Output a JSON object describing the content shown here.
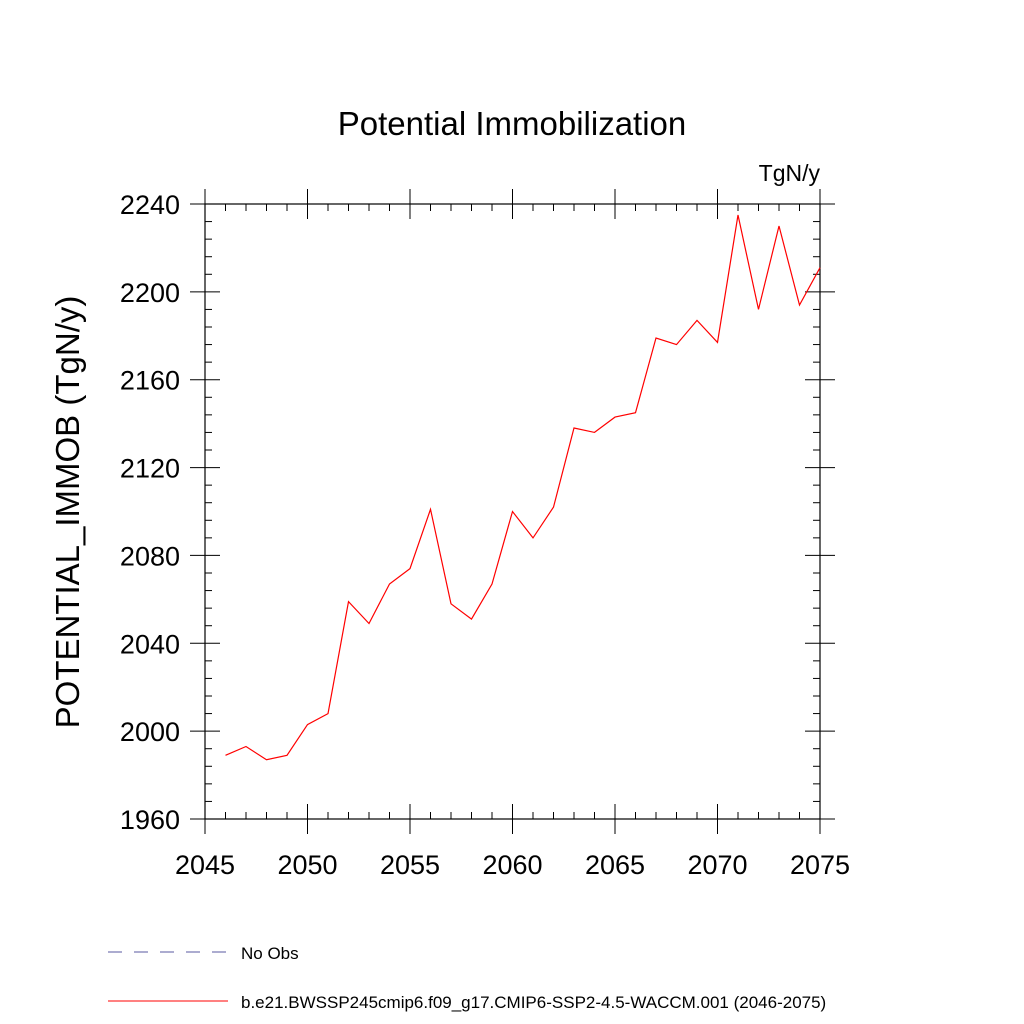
{
  "chart_data": {
    "type": "line",
    "title": "Potential Immobilization",
    "units_label": "TgN/y",
    "ylabel": "POTENTIAL_IMMOB  (TgN/y)",
    "xlabel": "",
    "xlim": [
      2045,
      2075
    ],
    "ylim": [
      1960,
      2240
    ],
    "x_ticks": [
      2045,
      2050,
      2055,
      2060,
      2065,
      2070,
      2075
    ],
    "y_ticks": [
      1960,
      2000,
      2040,
      2080,
      2120,
      2160,
      2200,
      2240
    ],
    "x_minor_step": 1,
    "y_minor_step": 8,
    "series": [
      {
        "name": "b.e21.BWSSP245cmip6.f09_g17.CMIP6-SSP2-4.5-WACCM.001 (2046-2075)",
        "color": "#ff0000",
        "style": "solid",
        "x": [
          2046,
          2047,
          2048,
          2049,
          2050,
          2051,
          2052,
          2053,
          2054,
          2055,
          2056,
          2057,
          2058,
          2059,
          2060,
          2061,
          2062,
          2063,
          2064,
          2065,
          2066,
          2067,
          2068,
          2069,
          2070,
          2071,
          2072,
          2073,
          2074,
          2075
        ],
        "values": [
          1989,
          1993,
          1987,
          1989,
          2003,
          2008,
          2059,
          2049,
          2067,
          2074,
          2101,
          2058,
          2051,
          2067,
          2100,
          2088,
          2102,
          2138,
          2136,
          2143,
          2145,
          2179,
          2176,
          2187,
          2177,
          2235,
          2192,
          2230,
          2194,
          2211
        ]
      }
    ],
    "legend": [
      {
        "label": "No Obs",
        "color": "#5a5aa0",
        "style": "dashed"
      },
      {
        "label": "b.e21.BWSSP245cmip6.f09_g17.CMIP6-SSP2-4.5-WACCM.001 (2046-2075)",
        "color": "#ff0000",
        "style": "solid"
      }
    ],
    "legend_position": "bottom-left",
    "grid": false
  }
}
